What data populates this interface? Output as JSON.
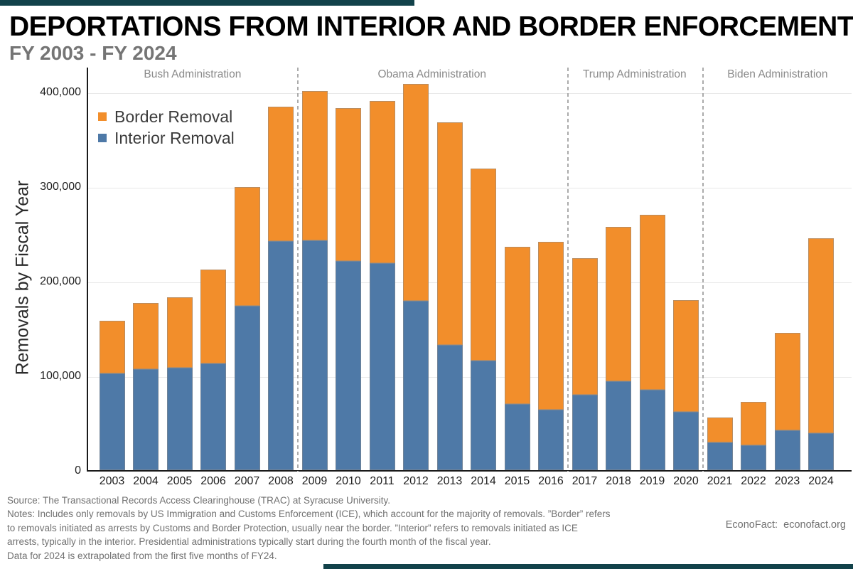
{
  "title": "DEPORTATIONS FROM INTERIOR AND BORDER ENFORCEMENT",
  "subtitle": "FY 2003 - FY 2024",
  "chart_data": {
    "type": "bar",
    "stacked": true,
    "categories": [
      "2003",
      "2004",
      "2005",
      "2006",
      "2007",
      "2008",
      "2009",
      "2010",
      "2011",
      "2012",
      "2013",
      "2014",
      "2015",
      "2016",
      "2017",
      "2018",
      "2019",
      "2020",
      "2021",
      "2022",
      "2023",
      "2024"
    ],
    "series": [
      {
        "name": "Border Removal",
        "color": "#F28E2B",
        "values": [
          56000,
          70000,
          75000,
          99000,
          125000,
          142000,
          158000,
          162000,
          171000,
          229000,
          236000,
          203000,
          166000,
          177000,
          144000,
          163000,
          185000,
          118000,
          27000,
          46000,
          103000,
          206000
        ]
      },
      {
        "name": "Interior Removal",
        "color": "#4E79A7",
        "values": [
          102000,
          107000,
          108000,
          113000,
          174000,
          242000,
          243000,
          221000,
          219000,
          179000,
          132000,
          116000,
          70000,
          64000,
          80000,
          94000,
          85000,
          62000,
          29000,
          26000,
          42000,
          39000
        ]
      }
    ],
    "totals": [
      158000,
      177000,
      183000,
      212000,
      299000,
      384000,
      401000,
      383000,
      390000,
      408000,
      368000,
      319000,
      236000,
      241000,
      224000,
      257000,
      270000,
      180000,
      56000,
      72000,
      145000,
      245000
    ],
    "title": "DEPORTATIONS FROM INTERIOR AND BORDER ENFORCEMENT",
    "xlabel": "",
    "ylabel": "Removals by Fiscal Year",
    "ylim": [
      0,
      427000
    ],
    "yticks": [
      0,
      100000,
      200000,
      300000,
      400000
    ],
    "ytick_labels": [
      "0",
      "100,000",
      "200,000",
      "300,000",
      "400,000"
    ],
    "grid": "horizontal",
    "legend_position": "top-left-inside",
    "annotations": [
      {
        "label": "Bush Administration",
        "from": "2003",
        "to": "2008"
      },
      {
        "label": "Obama Administration",
        "from": "2009",
        "to": "2016"
      },
      {
        "label": "Trump Administration",
        "from": "2017",
        "to": "2020"
      },
      {
        "label": "Biden Administration",
        "from": "2021",
        "to": "2024"
      }
    ],
    "separators_after": [
      "2008",
      "2016",
      "2020"
    ]
  },
  "notes": {
    "lines": [
      "Source: The Transactional Records Access Clearinghouse (TRAC) at Syracuse University.",
      "Notes: Includes only removals by US Immigration and Customs Enforcement (ICE), which account for the majority of removals. ”Border” refers",
      "to removals initiated as arrests by Customs and Border Protection, usually near the border. ”Interior” refers to removals initiated as ICE",
      "arrests, typically in the interior. Presidential administrations typically start during the fourth month of the fiscal year.",
      "Data for 2024 is extrapolated from the first five months of FY24."
    ]
  },
  "branding": "EconoFact:  econofact.org",
  "colors": {
    "border_removal": "#F28E2B",
    "interior_removal": "#4E79A7",
    "gridline": "#E8E8E8",
    "axis": "#1A1A1A",
    "separator": "#ABABAB",
    "admin_label": "#8A8A8A",
    "subtitle": "#757575",
    "notes_text": "#717171",
    "brand_teal": "#12424A"
  }
}
